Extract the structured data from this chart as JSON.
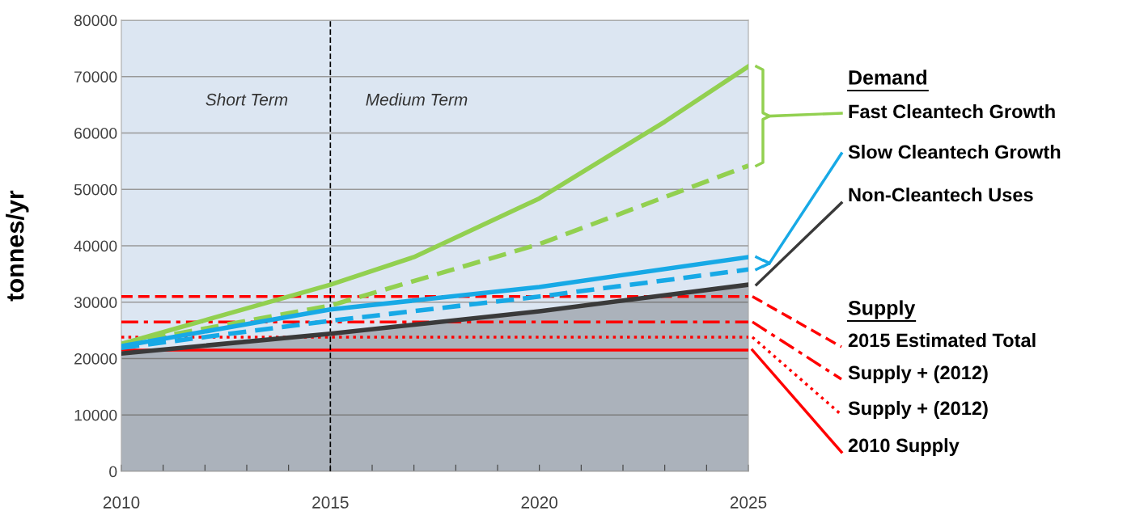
{
  "chart_data": {
    "type": "line",
    "ylabel": "tonnes/yr",
    "series": [
      {
        "name": "Fast Cleantech Growth",
        "color": "#92d050",
        "line_style": "solid",
        "x": [
          2010,
          2015,
          2017,
          2020,
          2023,
          2025
        ],
        "values": [
          22600,
          33100,
          38000,
          48400,
          62000,
          71800
        ]
      },
      {
        "color": "#92d050",
        "line_style": "dashed",
        "x": [
          2010,
          2015,
          2020,
          2025
        ],
        "values": [
          22600,
          29400,
          40300,
          54200
        ]
      },
      {
        "name": "Slow Cleantech Growth",
        "color": "#17a9e6",
        "line_style": "solid",
        "x": [
          2010,
          2015,
          2020,
          2025
        ],
        "values": [
          22200,
          28700,
          32700,
          38000
        ]
      },
      {
        "color": "#17a9e6",
        "line_style": "dashed",
        "x": [
          2010,
          2015,
          2020,
          2025
        ],
        "values": [
          21900,
          26700,
          31000,
          35800
        ]
      },
      {
        "name": "Non-Cleantech Uses",
        "type": "area",
        "color": "#3a3a3a",
        "line_style": "solid",
        "x": [
          2010,
          2015,
          2020,
          2025
        ],
        "values": [
          20900,
          24400,
          28400,
          33100
        ]
      }
    ],
    "ref_lines": [
      {
        "axis": "y",
        "value": 31000,
        "label": "2015 Estimated Total",
        "color": "#ff0000",
        "line_style": "dashed"
      },
      {
        "axis": "y",
        "value": 26500,
        "label": "Supply + (2012)",
        "color": "#ff0000",
        "line_style": "dashdot"
      },
      {
        "axis": "y",
        "value": 23800,
        "label": "Supply + (2012)",
        "color": "#ff0000",
        "line_style": "dotted"
      },
      {
        "axis": "y",
        "value": 21500,
        "label": "2010 Supply",
        "color": "#ff0000",
        "line_style": "solid"
      },
      {
        "axis": "x",
        "value": 2015,
        "color": "#000000",
        "line_style": "dashed"
      }
    ],
    "annotations": [
      "Short Term",
      "Medium Term",
      "Demand",
      "Supply"
    ],
    "xlim": [
      2010,
      2025
    ],
    "ylim": [
      0,
      80000
    ],
    "xticks": [
      2010,
      {
        "value": 2011,
        "label": null
      },
      {
        "value": 2012,
        "label": null
      },
      {
        "value": 2013,
        "label": null
      },
      {
        "value": 2014,
        "label": null
      },
      2015,
      {
        "value": 2016,
        "label": null
      },
      {
        "value": 2017,
        "label": null
      },
      {
        "value": 2018,
        "label": null
      },
      {
        "value": 2019,
        "label": null
      },
      2020,
      {
        "value": 2021,
        "label": null
      },
      {
        "value": 2022,
        "label": null
      },
      {
        "value": 2023,
        "label": null
      },
      {
        "value": 2024,
        "label": null
      },
      2025
    ],
    "yticks": [
      0,
      10000,
      20000,
      30000,
      40000,
      50000,
      60000,
      70000,
      80000
    ],
    "grid": "y",
    "legend": false
  }
}
